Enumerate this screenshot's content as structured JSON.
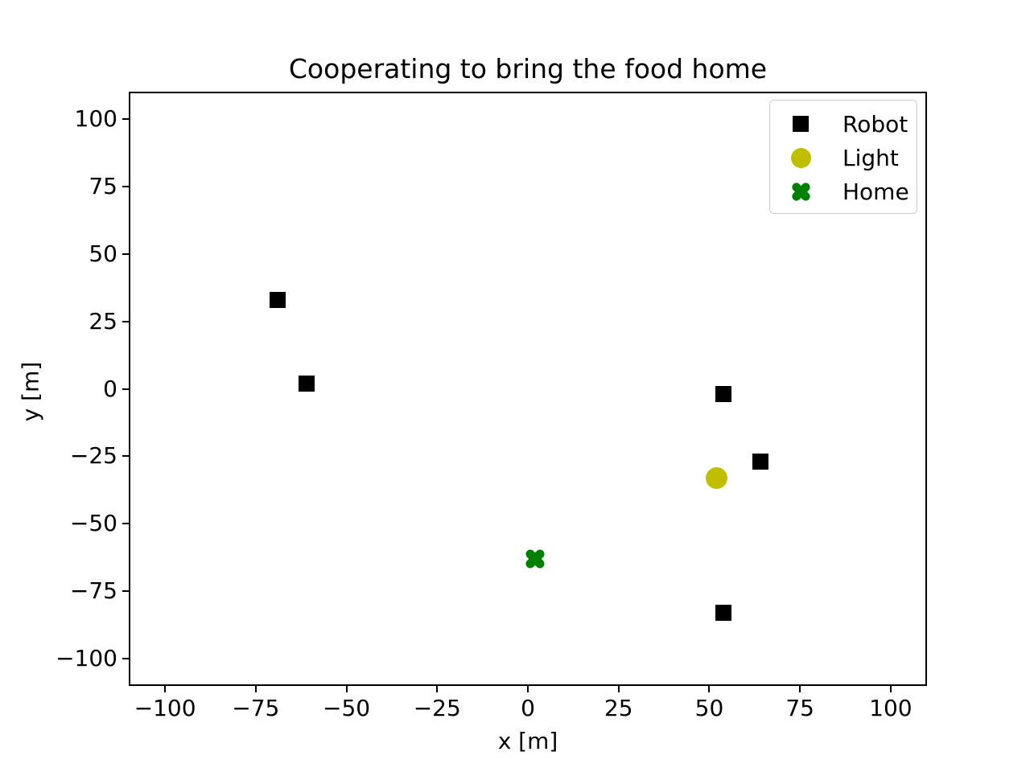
{
  "chart_data": {
    "type": "scatter",
    "title": "Cooperating to bring the food home",
    "xlabel": "x [m]",
    "ylabel": "y [m]",
    "xlim": [
      -110,
      110
    ],
    "ylim": [
      -110,
      110
    ],
    "xticks": [
      -100,
      -75,
      -50,
      -25,
      0,
      25,
      50,
      75,
      100
    ],
    "yticks": [
      100,
      75,
      50,
      25,
      0,
      -25,
      -50,
      -75,
      -100
    ],
    "grid": false,
    "background": "#ffffff",
    "legend": {
      "position": "upper right",
      "entries": [
        {
          "label": "Robot",
          "marker": "square",
          "color": "#000000"
        },
        {
          "label": "Light",
          "marker": "circle",
          "color": "#bfbf00"
        },
        {
          "label": "Home",
          "marker": "X",
          "color": "#008000"
        }
      ]
    },
    "series": [
      {
        "name": "Robot",
        "marker": "square",
        "color": "#000000",
        "points": [
          [
            -69,
            33
          ],
          [
            -61,
            2
          ],
          [
            54,
            -2
          ],
          [
            64,
            -27
          ],
          [
            54,
            -83
          ]
        ]
      },
      {
        "name": "Light",
        "marker": "circle",
        "color": "#bfbf00",
        "points": [
          [
            52,
            -33
          ]
        ]
      },
      {
        "name": "Home",
        "marker": "X",
        "color": "#008000",
        "points": [
          [
            2,
            -63
          ]
        ]
      }
    ]
  }
}
